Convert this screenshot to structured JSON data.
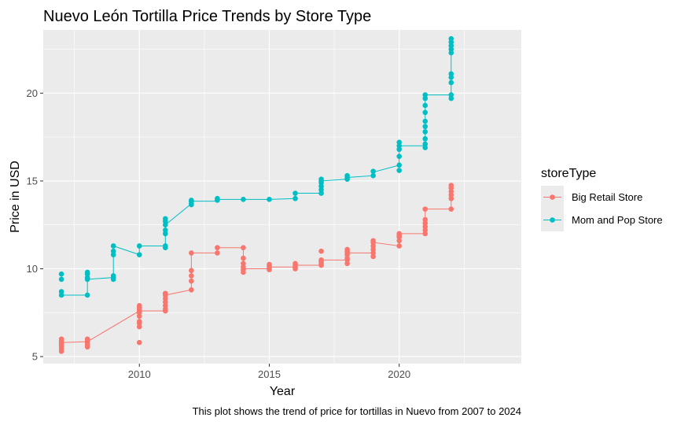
{
  "chart_data": {
    "type": "line",
    "title": "Nuevo León Tortilla Price Trends by Store Type",
    "xlabel": "Year",
    "ylabel": "Price in USD",
    "caption": "This plot shows the trend of price for tortillas in Nuevo from 2007 to 2024",
    "xlim": [
      2006.3,
      2024.7
    ],
    "ylim": [
      4.6,
      23.6
    ],
    "x_ticks": [
      2010,
      2015,
      2020
    ],
    "y_ticks": [
      5,
      10,
      15,
      20
    ],
    "grid": true,
    "legend": {
      "title": "storeType",
      "position": "right"
    },
    "series": [
      {
        "name": "Big Retail Store",
        "color": "#F8766D",
        "line": [
          [
            2007,
            5.8
          ],
          [
            2008,
            5.85
          ],
          [
            2010,
            7.6
          ],
          [
            2011,
            7.6
          ],
          [
            2011,
            8.5
          ],
          [
            2012,
            8.8
          ],
          [
            2012,
            10.9
          ],
          [
            2013,
            10.9
          ],
          [
            2013,
            11.2
          ],
          [
            2014,
            11.2
          ],
          [
            2014,
            10.0
          ],
          [
            2015,
            10.0
          ],
          [
            2015,
            10.1
          ],
          [
            2016,
            10.1
          ],
          [
            2016,
            10.2
          ],
          [
            2017,
            10.2
          ],
          [
            2017,
            10.5
          ],
          [
            2018,
            10.5
          ],
          [
            2018,
            10.9
          ],
          [
            2019,
            10.9
          ],
          [
            2019,
            11.5
          ],
          [
            2020,
            11.3
          ],
          [
            2020,
            12.0
          ],
          [
            2021,
            12.0
          ],
          [
            2021,
            13.4
          ],
          [
            2022,
            13.4
          ],
          [
            2022,
            14.7
          ]
        ],
        "points": {
          "2007": [
            5.3,
            5.45,
            5.6,
            5.7,
            5.8,
            5.9,
            6.0
          ],
          "2008": [
            5.55,
            5.65,
            5.75,
            5.85,
            5.95,
            6.0
          ],
          "2010": [
            5.8,
            6.7,
            6.9,
            7.0,
            7.3,
            7.5,
            7.6,
            7.7,
            7.8,
            7.9
          ],
          "2011": [
            7.6,
            7.7,
            7.9,
            8.1,
            8.3,
            8.5,
            8.6
          ],
          "2012": [
            8.8,
            9.3,
            9.6,
            9.9,
            10.9
          ],
          "2013": [
            10.9,
            11.2
          ],
          "2014": [
            9.8,
            9.95,
            10.1,
            10.3,
            10.6,
            11.2
          ],
          "2015": [
            9.95,
            10.05,
            10.15,
            10.25
          ],
          "2016": [
            10.0,
            10.1,
            10.2,
            10.3
          ],
          "2017": [
            10.2,
            10.3,
            10.4,
            10.5,
            11.0
          ],
          "2018": [
            10.3,
            10.5,
            10.6,
            10.8,
            10.9,
            11.0,
            11.1
          ],
          "2019": [
            10.7,
            10.9,
            11.1,
            11.3,
            11.5,
            11.6
          ],
          "2020": [
            11.3,
            11.6,
            11.8,
            11.9,
            12.0
          ],
          "2021": [
            12.0,
            12.2,
            12.4,
            12.6,
            12.8,
            13.4
          ],
          "2022": [
            13.4,
            14.0,
            14.2,
            14.4,
            14.6,
            14.75
          ]
        }
      },
      {
        "name": "Mom and Pop Store",
        "color": "#00BFC4",
        "line": [
          [
            2007,
            8.5
          ],
          [
            2008,
            8.5
          ],
          [
            2008,
            9.4
          ],
          [
            2009,
            9.5
          ],
          [
            2009,
            11.3
          ],
          [
            2010,
            10.8
          ],
          [
            2010,
            11.3
          ],
          [
            2011,
            11.3
          ],
          [
            2011,
            12.5
          ],
          [
            2012,
            13.7
          ],
          [
            2012,
            13.85
          ],
          [
            2013,
            13.85
          ],
          [
            2013,
            13.95
          ],
          [
            2014,
            13.95
          ],
          [
            2015,
            13.95
          ],
          [
            2016,
            14.0
          ],
          [
            2016,
            14.3
          ],
          [
            2017,
            14.3
          ],
          [
            2017,
            15.0
          ],
          [
            2018,
            15.1
          ],
          [
            2018,
            15.2
          ],
          [
            2019,
            15.3
          ],
          [
            2019,
            15.5
          ],
          [
            2020,
            15.9
          ],
          [
            2020,
            17.0
          ],
          [
            2021,
            17.0
          ],
          [
            2021,
            19.9
          ],
          [
            2022,
            19.9
          ],
          [
            2022,
            23.0
          ]
        ],
        "points": {
          "2007": [
            8.5,
            8.7,
            9.4,
            9.7
          ],
          "2008": [
            8.5,
            9.4,
            9.5,
            9.7,
            9.8
          ],
          "2009": [
            9.4,
            9.5,
            9.6,
            10.8,
            11.0,
            11.3
          ],
          "2010": [
            10.8,
            11.3
          ],
          "2011": [
            11.2,
            11.3,
            12.0,
            12.2,
            12.5,
            12.7,
            12.85
          ],
          "2012": [
            13.65,
            13.75,
            13.85,
            13.9
          ],
          "2013": [
            13.9,
            14.0
          ],
          "2014": [
            13.95
          ],
          "2015": [
            13.95
          ],
          "2016": [
            14.0,
            14.3
          ],
          "2017": [
            14.3,
            14.5,
            14.7,
            14.9,
            15.0,
            15.1
          ],
          "2018": [
            15.1,
            15.2,
            15.3
          ],
          "2019": [
            15.3,
            15.55
          ],
          "2020": [
            15.6,
            15.9,
            16.4,
            16.8,
            17.0,
            17.2
          ],
          "2021": [
            16.9,
            17.1,
            17.4,
            17.8,
            18.1,
            18.4,
            18.9,
            19.3,
            19.7,
            19.9
          ],
          "2022": [
            19.7,
            19.9,
            20.6,
            20.9,
            21.1,
            22.3,
            22.5,
            22.7,
            22.9,
            23.1
          ]
        }
      }
    ]
  }
}
